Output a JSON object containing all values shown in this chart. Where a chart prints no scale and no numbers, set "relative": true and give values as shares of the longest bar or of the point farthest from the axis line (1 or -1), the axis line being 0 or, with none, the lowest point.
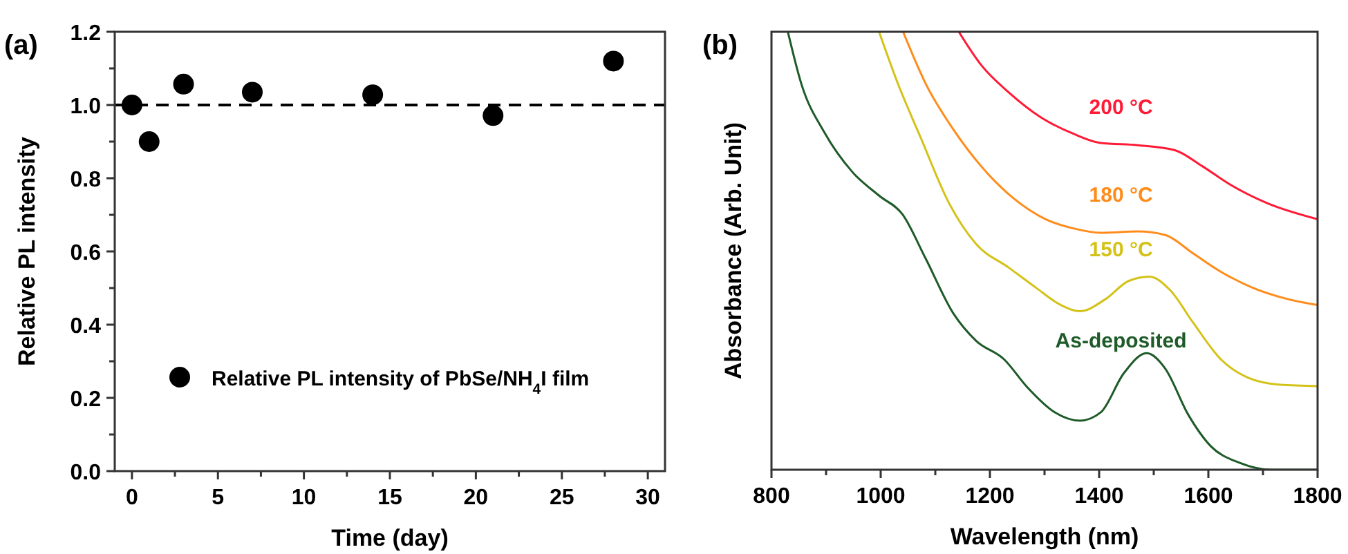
{
  "chart_data": [
    {
      "type": "scatter",
      "title": "(a)",
      "xlabel": "Time (day)",
      "ylabel": "Relative PL intensity",
      "x": [
        0,
        1,
        3,
        7,
        14,
        21,
        28
      ],
      "series": [
        {
          "name": "Relative PL intensity of PbSe/NH$_{4}$I film",
          "color": "#000000",
          "values": [
            1.0,
            0.9,
            1.057,
            1.035,
            1.028,
            0.971,
            1.12
          ]
        }
      ],
      "xlim": [
        -1,
        31
      ],
      "xticks": [
        0,
        {
          "value": 2.5,
          "label": null
        },
        5,
        {
          "value": 7.5,
          "label": null
        },
        10,
        {
          "value": 12.5,
          "label": null
        },
        15,
        {
          "value": 17.5,
          "label": null
        },
        20,
        {
          "value": 22.5,
          "label": null
        },
        25,
        {
          "value": 27.5,
          "label": null
        },
        30
      ],
      "ylim": [
        0,
        1.2
      ],
      "yticks": [
        {
          "value": 0,
          "label": "0.0"
        },
        {
          "value": 0.1,
          "label": null
        },
        0.2,
        {
          "value": 0.3,
          "label": null
        },
        0.4,
        {
          "value": 0.5,
          "label": null
        },
        0.6,
        {
          "value": 0.7,
          "label": null
        },
        0.8,
        {
          "value": 0.9,
          "label": null
        },
        {
          "value": 1,
          "label": "1.0"
        },
        {
          "value": 1.1,
          "label": null
        },
        1.2
      ],
      "ref_lines": [
        {
          "axis": "y",
          "value": 1,
          "line_style": "dashed",
          "color": "#000000"
        }
      ],
      "marker": "circle",
      "legend": "bottom",
      "grid": false
    },
    {
      "type": "line",
      "title": "(b)",
      "xlabel": "Wavelength (nm)",
      "ylabel": "Absorbance (Arb. Unit)",
      "relative": true,
      "xlim": [
        800,
        1800
      ],
      "xticks": [
        800,
        {
          "value": 900,
          "label": null
        },
        1000,
        {
          "value": 1100,
          "label": null
        },
        1200,
        {
          "value": 1300,
          "label": null
        },
        1400,
        {
          "value": 1500,
          "label": null
        },
        1600,
        {
          "value": 1700,
          "label": null
        },
        1800
      ],
      "series": [
        {
          "name": "As-deposited",
          "color": "#1e5b28",
          "x": [
            830,
            855,
            897,
            948,
            998,
            1040,
            1082,
            1133,
            1175,
            1226,
            1268,
            1319,
            1365,
            1403,
            1445,
            1487,
            1521,
            1563,
            1605,
            1657,
            1716,
            1800
          ],
          "values": [
            1.0,
            0.88,
            0.77,
            0.68,
            0.625,
            0.583,
            0.483,
            0.357,
            0.294,
            0.252,
            0.189,
            0.131,
            0.112,
            0.131,
            0.22,
            0.266,
            0.231,
            0.126,
            0.053,
            0.016,
            0,
            0
          ]
        },
        {
          "name": "150 °C",
          "color": "#d4c219",
          "x": [
            997,
            1032,
            1074,
            1125,
            1175,
            1234,
            1285,
            1327,
            1365,
            1411,
            1454,
            1492,
            1530,
            1572,
            1623,
            1673,
            1732,
            1800
          ],
          "values": [
            1.0,
            0.88,
            0.756,
            0.609,
            0.515,
            0.462,
            0.415,
            0.378,
            0.362,
            0.389,
            0.431,
            0.441,
            0.41,
            0.336,
            0.252,
            0.21,
            0.194,
            0.191
          ]
        },
        {
          "name": "180 °C",
          "color": "#ff8c1a",
          "x": [
            1041,
            1083,
            1133,
            1184,
            1243,
            1302,
            1353,
            1403,
            1471,
            1521,
            1572,
            1623,
            1682,
            1741,
            1800
          ],
          "values": [
            1.0,
            0.88,
            0.777,
            0.693,
            0.62,
            0.572,
            0.551,
            0.541,
            0.544,
            0.536,
            0.494,
            0.452,
            0.415,
            0.391,
            0.376
          ]
        },
        {
          "name": "200 °C",
          "color": "#ff1a35",
          "x": [
            1143,
            1184,
            1235,
            1294,
            1353,
            1403,
            1471,
            1538,
            1589,
            1640,
            1707,
            1800
          ],
          "values": [
            1.0,
            0.924,
            0.861,
            0.804,
            0.767,
            0.746,
            0.741,
            0.73,
            0.693,
            0.651,
            0.609,
            0.572
          ]
        }
      ],
      "marker": "none",
      "line_style": "solid",
      "legend": false,
      "grid": false
    }
  ]
}
